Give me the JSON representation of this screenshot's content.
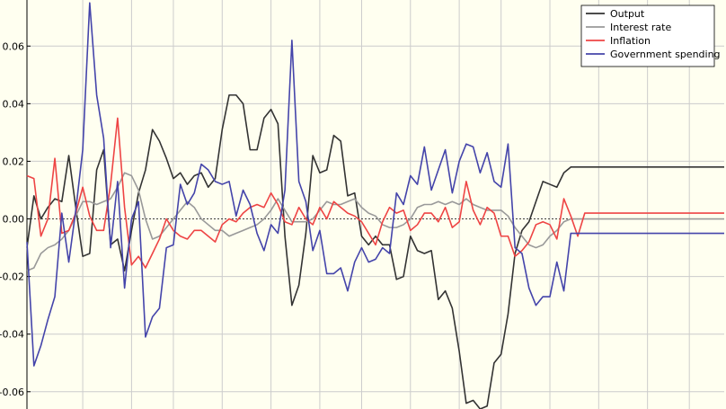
{
  "chart_data": {
    "type": "line",
    "title": "",
    "xlabel": "",
    "ylabel": "",
    "ylim": [
      -0.066,
      0.076
    ],
    "yticks": [
      -0.06,
      -0.04,
      -0.02,
      0.0,
      0.02,
      0.04,
      0.06
    ],
    "ytick_labels": [
      "-0.06",
      "-0.04",
      "-0.02",
      "0.00",
      "0.02",
      "0.04",
      "0.06"
    ],
    "x": [
      0,
      1,
      2,
      3,
      4,
      5,
      6,
      7,
      8,
      9,
      10,
      11,
      12,
      13,
      14,
      15,
      16,
      17,
      18,
      19,
      20,
      21,
      22,
      23,
      24,
      25,
      26,
      27,
      28,
      29,
      30,
      31,
      32,
      33,
      34,
      35,
      36,
      37,
      38,
      39,
      40,
      41,
      42,
      43,
      44,
      45,
      46,
      47,
      48,
      49,
      50,
      51,
      52,
      53,
      54,
      55,
      56,
      57,
      58,
      59,
      60,
      61,
      62,
      63,
      64,
      65,
      66,
      67,
      68,
      69,
      70,
      71,
      72,
      73,
      74,
      75,
      76,
      77,
      78,
      79,
      80,
      81,
      82,
      83,
      84,
      85,
      86,
      87,
      88,
      89,
      90,
      91,
      92,
      93,
      94,
      95,
      96,
      97,
      98,
      99,
      100
    ],
    "xlim": [
      0,
      100
    ],
    "vertical_gridlines_x": [
      8,
      15,
      21,
      28,
      35,
      42,
      48,
      55,
      62,
      68,
      75,
      82,
      89,
      95
    ],
    "grid": true,
    "zero_line": "dashed",
    "legend": "top-right",
    "series": [
      {
        "name": "Output",
        "color": "#333333",
        "values": [
          -0.01,
          0.008,
          0.0,
          0.004,
          0.007,
          0.006,
          0.022,
          0.004,
          -0.013,
          -0.012,
          0.017,
          0.024,
          -0.009,
          -0.007,
          -0.018,
          -0.004,
          0.009,
          0.017,
          0.031,
          0.027,
          0.021,
          0.014,
          0.016,
          0.012,
          0.015,
          0.016,
          0.011,
          0.014,
          0.031,
          0.043,
          0.043,
          0.04,
          0.024,
          0.024,
          0.035,
          0.038,
          0.033,
          -0.006,
          -0.03,
          -0.023,
          -0.005,
          0.022,
          0.016,
          0.017,
          0.029,
          0.027,
          0.008,
          0.009,
          -0.006,
          -0.009,
          -0.006,
          -0.009,
          -0.009,
          -0.021,
          -0.02,
          -0.006,
          -0.011,
          -0.012,
          -0.011,
          -0.028,
          -0.025,
          -0.031,
          -0.046,
          -0.064,
          -0.063,
          -0.066,
          -0.065,
          -0.05,
          -0.047,
          -0.033,
          -0.012,
          -0.004,
          -0.001,
          0.006,
          0.013,
          0.012,
          0.011,
          0.016,
          0.018,
          0.018,
          0.018,
          0.018,
          0.018,
          0.018,
          0.018,
          0.018,
          0.018,
          0.018,
          0.018,
          0.018,
          0.018,
          0.018,
          0.018,
          0.018,
          0.018,
          0.018,
          0.018,
          0.018,
          0.018,
          0.018,
          0.018
        ]
      },
      {
        "name": "Interest rate",
        "color": "#999999",
        "values": [
          -0.018,
          -0.017,
          -0.012,
          -0.01,
          -0.009,
          -0.007,
          -0.004,
          0.001,
          0.006,
          0.006,
          0.005,
          0.006,
          0.007,
          0.011,
          0.016,
          0.015,
          0.01,
          0.0,
          -0.007,
          -0.006,
          -0.003,
          0.0,
          0.003,
          0.006,
          0.004,
          0.0,
          -0.002,
          -0.004,
          -0.004,
          -0.006,
          -0.005,
          -0.004,
          -0.003,
          -0.002,
          0.0,
          0.003,
          0.007,
          0.003,
          -0.001,
          -0.001,
          -0.001,
          0.0,
          0.003,
          0.006,
          0.005,
          0.005,
          0.006,
          0.007,
          0.004,
          0.002,
          0.001,
          -0.002,
          -0.003,
          -0.003,
          -0.002,
          0.0,
          0.004,
          0.005,
          0.005,
          0.006,
          0.005,
          0.006,
          0.005,
          0.007,
          0.005,
          0.004,
          0.003,
          0.003,
          0.003,
          0.001,
          -0.003,
          -0.006,
          -0.009,
          -0.01,
          -0.009,
          -0.006,
          -0.004,
          -0.001,
          0.0,
          0.0,
          0.0,
          0.0,
          0.0,
          0.0,
          0.0,
          0.0,
          0.0,
          0.0,
          0.0,
          0.0,
          0.0,
          0.0,
          0.0,
          0.0,
          0.0,
          0.0,
          0.0,
          0.0,
          0.0,
          0.0,
          0.0
        ]
      },
      {
        "name": "Inflation",
        "color": "#ee4444",
        "values": [
          0.015,
          0.014,
          -0.006,
          0.0,
          0.021,
          -0.005,
          -0.004,
          0.002,
          0.011,
          0.001,
          -0.004,
          -0.004,
          0.012,
          0.035,
          0.004,
          -0.016,
          -0.013,
          -0.017,
          -0.012,
          -0.007,
          0.0,
          -0.004,
          -0.006,
          -0.007,
          -0.004,
          -0.004,
          -0.006,
          -0.008,
          -0.002,
          0.0,
          -0.001,
          0.002,
          0.004,
          0.005,
          0.004,
          0.009,
          0.005,
          -0.001,
          -0.002,
          0.004,
          0.0,
          -0.002,
          0.004,
          0.0,
          0.006,
          0.004,
          0.002,
          0.001,
          -0.001,
          -0.005,
          -0.009,
          -0.001,
          0.004,
          0.002,
          0.003,
          -0.004,
          -0.002,
          0.002,
          0.002,
          -0.001,
          0.004,
          -0.003,
          -0.001,
          0.013,
          0.003,
          -0.002,
          0.004,
          0.002,
          -0.006,
          -0.006,
          -0.013,
          -0.011,
          -0.008,
          -0.002,
          -0.001,
          -0.002,
          -0.007,
          0.007,
          0.001,
          -0.006,
          0.002,
          0.002,
          0.002,
          0.002,
          0.002,
          0.002,
          0.002,
          0.002,
          0.002,
          0.002,
          0.002,
          0.002,
          0.002,
          0.002,
          0.002,
          0.002,
          0.002,
          0.002,
          0.002,
          0.002,
          0.002
        ]
      },
      {
        "name": "Government spending",
        "color": "#4444aa",
        "values": [
          -0.008,
          -0.051,
          -0.044,
          -0.035,
          -0.027,
          0.002,
          -0.015,
          0.003,
          0.024,
          0.075,
          0.043,
          0.028,
          -0.01,
          0.013,
          -0.024,
          0.0,
          0.006,
          -0.041,
          -0.034,
          -0.031,
          -0.01,
          -0.009,
          0.012,
          0.005,
          0.009,
          0.019,
          0.017,
          0.013,
          0.012,
          0.013,
          0.001,
          0.01,
          0.005,
          -0.005,
          -0.011,
          -0.002,
          -0.005,
          0.01,
          0.062,
          0.013,
          0.006,
          -0.011,
          -0.004,
          -0.019,
          -0.019,
          -0.017,
          -0.025,
          -0.015,
          -0.01,
          -0.015,
          -0.014,
          -0.01,
          -0.012,
          0.009,
          0.005,
          0.015,
          0.012,
          0.025,
          0.01,
          0.017,
          0.024,
          0.009,
          0.02,
          0.026,
          0.025,
          0.016,
          0.023,
          0.013,
          0.011,
          0.026,
          -0.01,
          -0.012,
          -0.024,
          -0.03,
          -0.027,
          -0.027,
          -0.015,
          -0.025,
          -0.005,
          -0.005,
          -0.005,
          -0.005,
          -0.005,
          -0.005,
          -0.005,
          -0.005,
          -0.005,
          -0.005,
          -0.005,
          -0.005,
          -0.005,
          -0.005,
          -0.005,
          -0.005,
          -0.005,
          -0.005,
          -0.005,
          -0.005,
          -0.005,
          -0.005,
          -0.005
        ]
      }
    ]
  }
}
